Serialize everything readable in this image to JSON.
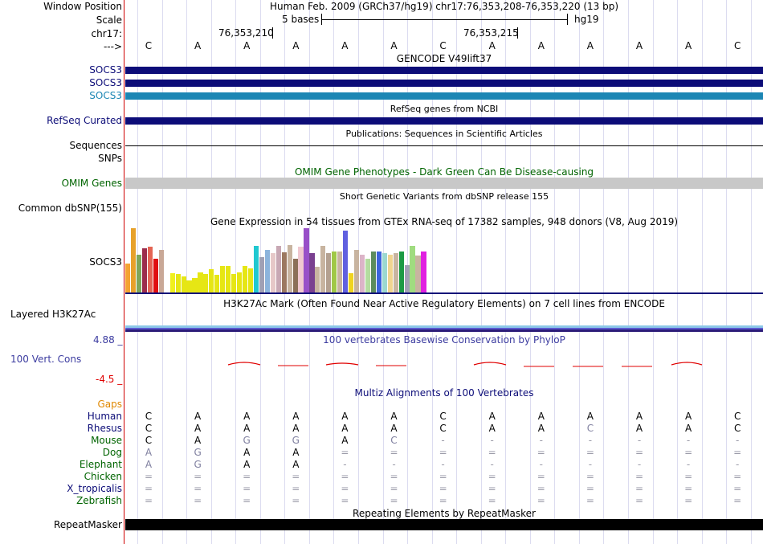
{
  "colors": {
    "navy": "#0c0c78",
    "socs3_light": "#1c86b4",
    "omim_green": "#006400",
    "gaps": "#e08800",
    "grey": "#c8c8c8",
    "phylop": "#3c3ca0",
    "red": "#e00000",
    "left_line": "#d00000"
  },
  "ruler": {
    "window_position_label": "Window Position",
    "window_position": "Human Feb. 2009 (GRCh37/hg19)   chr17:76,353,208-76,353,220 (13 bp)",
    "scale_label": "Scale",
    "scale_text": "5 bases",
    "scale_db": "hg19",
    "chrom_label": "chr17:",
    "pos1": "76,353,210",
    "pos2": "76,353,215",
    "arrow_label": "--->",
    "bases": [
      "C",
      "A",
      "A",
      "A",
      "A",
      "A",
      "C",
      "A",
      "A",
      "A",
      "A",
      "A",
      "C"
    ]
  },
  "gencode": {
    "title": "GENCODE V49lift37",
    "rows": [
      {
        "label": "SOCS3",
        "color": "#0c0c78"
      },
      {
        "label": "SOCS3",
        "color": "#0c0c78"
      },
      {
        "label": "SOCS3",
        "color": "#1c86b4"
      }
    ]
  },
  "refseq": {
    "title": "RefSeq genes from NCBI",
    "label": "RefSeq Curated"
  },
  "pubs": {
    "title": "Publications: Sequences in Scientific Articles",
    "label1": "Sequences",
    "label2": "SNPs"
  },
  "omim": {
    "title": "OMIM Gene Phenotypes - Dark Green Can Be Disease-causing",
    "label": "OMIM Genes"
  },
  "dbsnp": {
    "title": "Short Genetic Variants from dbSNP release 155",
    "label": "Common dbSNP(155)"
  },
  "gtex": {
    "title": "Gene Expression in 54 tissues from GTEx RNA-seq of 17382 samples, 948 donors (V8, Aug 2019)",
    "label": "SOCS3"
  },
  "chart_data": {
    "type": "bar",
    "title": "Gene Expression in 54 tissues from GTEx RNA-seq of 17382 samples, 948 donors (V8, Aug 2019)",
    "values": [
      36,
      80,
      47,
      55,
      57,
      42,
      53,
      0,
      24,
      23,
      20,
      15,
      18,
      25,
      23,
      29,
      22,
      33,
      33,
      23,
      25,
      33,
      30,
      58,
      44,
      53,
      49,
      58,
      50,
      59,
      42,
      57,
      80,
      49,
      32,
      58,
      49,
      51,
      51,
      77,
      24,
      53,
      47,
      42,
      51,
      51,
      49,
      47,
      49,
      51,
      34,
      58,
      46,
      51,
      62
    ],
    "colors": [
      "#f4a332",
      "#e7a12b",
      "#7fa65a",
      "#9c2d4c",
      "#e46453",
      "#e01010",
      "#c9a896",
      "#ffffff",
      "#f0f01e",
      "#e6e614",
      "#e6e614",
      "#e6e614",
      "#e6e614",
      "#e6e614",
      "#e6e614",
      "#e6e614",
      "#e6e614",
      "#e6e614",
      "#e6e614",
      "#e6e614",
      "#e6e614",
      "#e6e614",
      "#e6e614",
      "#20c8d0",
      "#a0a0b4",
      "#8cb4dc",
      "#e6c8c8",
      "#c8a8b4",
      "#9c7860",
      "#c8b4a0",
      "#8c7058",
      "#f0c8d0",
      "#9850c8",
      "#7a4090",
      "#c8b4a0",
      "#c8b4a0",
      "#b4a090",
      "#a0c846",
      "#c8b4a0",
      "#6060e0",
      "#f0d420",
      "#c8b4a0",
      "#dcb4c8",
      "#b4dca0",
      "#5c8c5c",
      "#3c64dc",
      "#9cd8d0",
      "#f0d490",
      "#c8b4a0",
      "#1c9a44",
      "#a0a0b4",
      "#a0dc80",
      "#c8b4a0",
      "#e020e0",
      "#ffffff"
    ],
    "ylim": [
      0,
      80
    ]
  },
  "h3k27ac": {
    "title": "H3K27Ac Mark (Often Found Near Active Regulatory Elements) on 7 cell lines from ENCODE",
    "label": "Layered H3K27Ac"
  },
  "cons": {
    "title": "100 vertebrates Basewise Conservation by PhyloP",
    "label": "100 Vert. Cons",
    "max": "4.88 _",
    "min": "-4.5 _"
  },
  "multiz": {
    "title": "Multiz Alignments of 100 Vertebrates",
    "gaps_label": "Gaps",
    "species": [
      {
        "name": "Human",
        "color": "#0c0c78",
        "bases": [
          "C",
          "A",
          "A",
          "A",
          "A",
          "A",
          "C",
          "A",
          "A",
          "A",
          "A",
          "A",
          "C"
        ]
      },
      {
        "name": "Rhesus",
        "color": "#0c0c78",
        "bases": [
          "C",
          "A",
          "A",
          "A",
          "A",
          "A",
          "C",
          "A",
          "A",
          "C",
          "A",
          "A",
          "C"
        ]
      },
      {
        "name": "Mouse",
        "color": "#006400",
        "bases": [
          "C",
          "A",
          "G",
          "G",
          "A",
          "C",
          "-",
          "-",
          "-",
          "-",
          "-",
          "-",
          "-"
        ]
      },
      {
        "name": "Dog",
        "color": "#006400",
        "bases": [
          "A",
          "G",
          "A",
          "A",
          "=",
          "=",
          "=",
          "=",
          "=",
          "=",
          "=",
          "=",
          "="
        ]
      },
      {
        "name": "Elephant",
        "color": "#006400",
        "bases": [
          "A",
          "G",
          "A",
          "A",
          "-",
          "-",
          "-",
          "-",
          "-",
          "-",
          "-",
          "-",
          "-"
        ]
      },
      {
        "name": "Chicken",
        "color": "#006400",
        "bases": [
          "=",
          "=",
          "=",
          "=",
          "=",
          "=",
          "=",
          "=",
          "=",
          "=",
          "=",
          "=",
          "="
        ]
      },
      {
        "name": "X_tropicalis",
        "color": "#0c0c78",
        "bases": [
          "=",
          "=",
          "=",
          "=",
          "=",
          "=",
          "=",
          "=",
          "=",
          "=",
          "=",
          "=",
          "="
        ]
      },
      {
        "name": "Zebrafish",
        "color": "#006400",
        "bases": [
          "=",
          "=",
          "=",
          "=",
          "=",
          "=",
          "=",
          "=",
          "=",
          "=",
          "=",
          "=",
          "="
        ]
      }
    ]
  },
  "repeat": {
    "title": "Repeating Elements by RepeatMasker",
    "label": "RepeatMasker"
  }
}
